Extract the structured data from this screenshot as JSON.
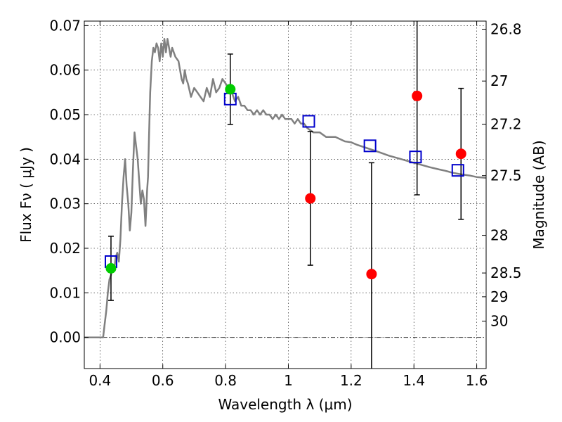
{
  "chart_data": {
    "type": "scatter",
    "title": "",
    "xlabel": "Wavelength  λ (μm)",
    "ylabel": "Flux  Fν  ( μJy )",
    "y2label": "Magnitude (AB)",
    "xlim": [
      0.35,
      1.63
    ],
    "ylim": [
      -0.007,
      0.071
    ],
    "grid": true,
    "x_ticks": [
      {
        "value": 0.4,
        "label": "0.4"
      },
      {
        "value": 0.6,
        "label": "0.6"
      },
      {
        "value": 0.8,
        "label": "0.8"
      },
      {
        "value": 1.0,
        "label": "1"
      },
      {
        "value": 1.2,
        "label": "1.2"
      },
      {
        "value": 1.4,
        "label": "1.4"
      },
      {
        "value": 1.6,
        "label": "1.6"
      }
    ],
    "y_ticks": [
      {
        "value": 0.0,
        "label": "0.00"
      },
      {
        "value": 0.01,
        "label": "0.01"
      },
      {
        "value": 0.02,
        "label": "0.02"
      },
      {
        "value": 0.03,
        "label": "0.03"
      },
      {
        "value": 0.04,
        "label": "0.04"
      },
      {
        "value": 0.05,
        "label": "0.05"
      },
      {
        "value": 0.06,
        "label": "0.06"
      },
      {
        "value": 0.07,
        "label": "0.07"
      }
    ],
    "y2_ticks": [
      {
        "value": 26.8,
        "label": "26.8"
      },
      {
        "value": 27.0,
        "label": "27"
      },
      {
        "value": 27.2,
        "label": "27.2"
      },
      {
        "value": 27.5,
        "label": "27.5"
      },
      {
        "value": 28.0,
        "label": "28"
      },
      {
        "value": 28.5,
        "label": "28.5"
      },
      {
        "value": 29.0,
        "label": "29"
      },
      {
        "value": 30.0,
        "label": "30"
      }
    ],
    "series": [
      {
        "type": "line",
        "color": "#808080",
        "x": [
          0.35,
          0.41,
          0.415,
          0.42,
          0.425,
          0.43,
          0.435,
          0.44,
          0.445,
          0.45,
          0.455,
          0.46,
          0.465,
          0.47,
          0.475,
          0.48,
          0.485,
          0.49,
          0.495,
          0.5,
          0.505,
          0.51,
          0.515,
          0.52,
          0.525,
          0.53,
          0.535,
          0.54,
          0.545,
          0.55,
          0.553,
          0.556,
          0.56,
          0.565,
          0.57,
          0.575,
          0.58,
          0.585,
          0.59,
          0.595,
          0.6,
          0.605,
          0.61,
          0.615,
          0.62,
          0.625,
          0.63,
          0.64,
          0.65,
          0.655,
          0.66,
          0.665,
          0.67,
          0.675,
          0.68,
          0.69,
          0.7,
          0.71,
          0.72,
          0.73,
          0.74,
          0.75,
          0.76,
          0.77,
          0.78,
          0.79,
          0.8,
          0.81,
          0.82,
          0.83,
          0.84,
          0.85,
          0.86,
          0.87,
          0.88,
          0.89,
          0.9,
          0.91,
          0.92,
          0.93,
          0.94,
          0.95,
          0.96,
          0.97,
          0.98,
          0.99,
          1.0,
          1.01,
          1.02,
          1.03,
          1.04,
          1.05,
          1.06,
          1.08,
          1.1,
          1.12,
          1.15,
          1.18,
          1.2,
          1.22,
          1.25,
          1.28,
          1.3,
          1.32,
          1.35,
          1.38,
          1.4,
          1.42,
          1.45,
          1.48,
          1.5,
          1.52,
          1.55,
          1.58,
          1.6,
          1.63
        ],
        "y": [
          0.0,
          0.0,
          0.003,
          0.006,
          0.01,
          0.013,
          0.014,
          0.016,
          0.015,
          0.018,
          0.019,
          0.017,
          0.022,
          0.03,
          0.036,
          0.04,
          0.034,
          0.03,
          0.024,
          0.028,
          0.038,
          0.046,
          0.043,
          0.04,
          0.035,
          0.03,
          0.033,
          0.031,
          0.025,
          0.033,
          0.036,
          0.045,
          0.055,
          0.062,
          0.065,
          0.064,
          0.066,
          0.065,
          0.062,
          0.066,
          0.063,
          0.067,
          0.064,
          0.067,
          0.065,
          0.063,
          0.065,
          0.063,
          0.062,
          0.06,
          0.058,
          0.057,
          0.06,
          0.058,
          0.057,
          0.054,
          0.056,
          0.055,
          0.054,
          0.053,
          0.056,
          0.054,
          0.058,
          0.055,
          0.056,
          0.058,
          0.057,
          0.056,
          0.055,
          0.053,
          0.054,
          0.052,
          0.052,
          0.051,
          0.051,
          0.05,
          0.051,
          0.05,
          0.051,
          0.05,
          0.05,
          0.049,
          0.05,
          0.049,
          0.05,
          0.049,
          0.049,
          0.049,
          0.048,
          0.049,
          0.048,
          0.048,
          0.047,
          0.046,
          0.046,
          0.045,
          0.045,
          0.044,
          0.0438,
          0.0432,
          0.0425,
          0.0418,
          0.0413,
          0.0408,
          0.0402,
          0.0396,
          0.0392,
          0.0388,
          0.0382,
          0.0377,
          0.0374,
          0.037,
          0.0366,
          0.0363,
          0.036,
          0.0358
        ]
      },
      {
        "type": "markers",
        "marker": "open-square",
        "color": "#0000cc",
        "x": [
          0.435,
          0.815,
          1.065,
          1.26,
          1.405,
          1.54
        ],
        "y": [
          0.017,
          0.0535,
          0.0485,
          0.043,
          0.0405,
          0.0375
        ]
      },
      {
        "type": "markers",
        "marker": "filled-circle",
        "color": "#00cc00",
        "x": [
          0.435,
          0.815
        ],
        "y": [
          0.0155,
          0.0557
        ],
        "yerr": [
          0.0072,
          0.0079
        ]
      },
      {
        "type": "markers",
        "marker": "filled-circle",
        "color": "#ff0000",
        "x": [
          1.07,
          1.265,
          1.41,
          1.55
        ],
        "y": [
          0.0312,
          0.0142,
          0.0542,
          0.0412
        ],
        "yerr": [
          0.015,
          0.025,
          0.0222,
          0.0147
        ]
      }
    ],
    "zero_line": 0.0
  }
}
